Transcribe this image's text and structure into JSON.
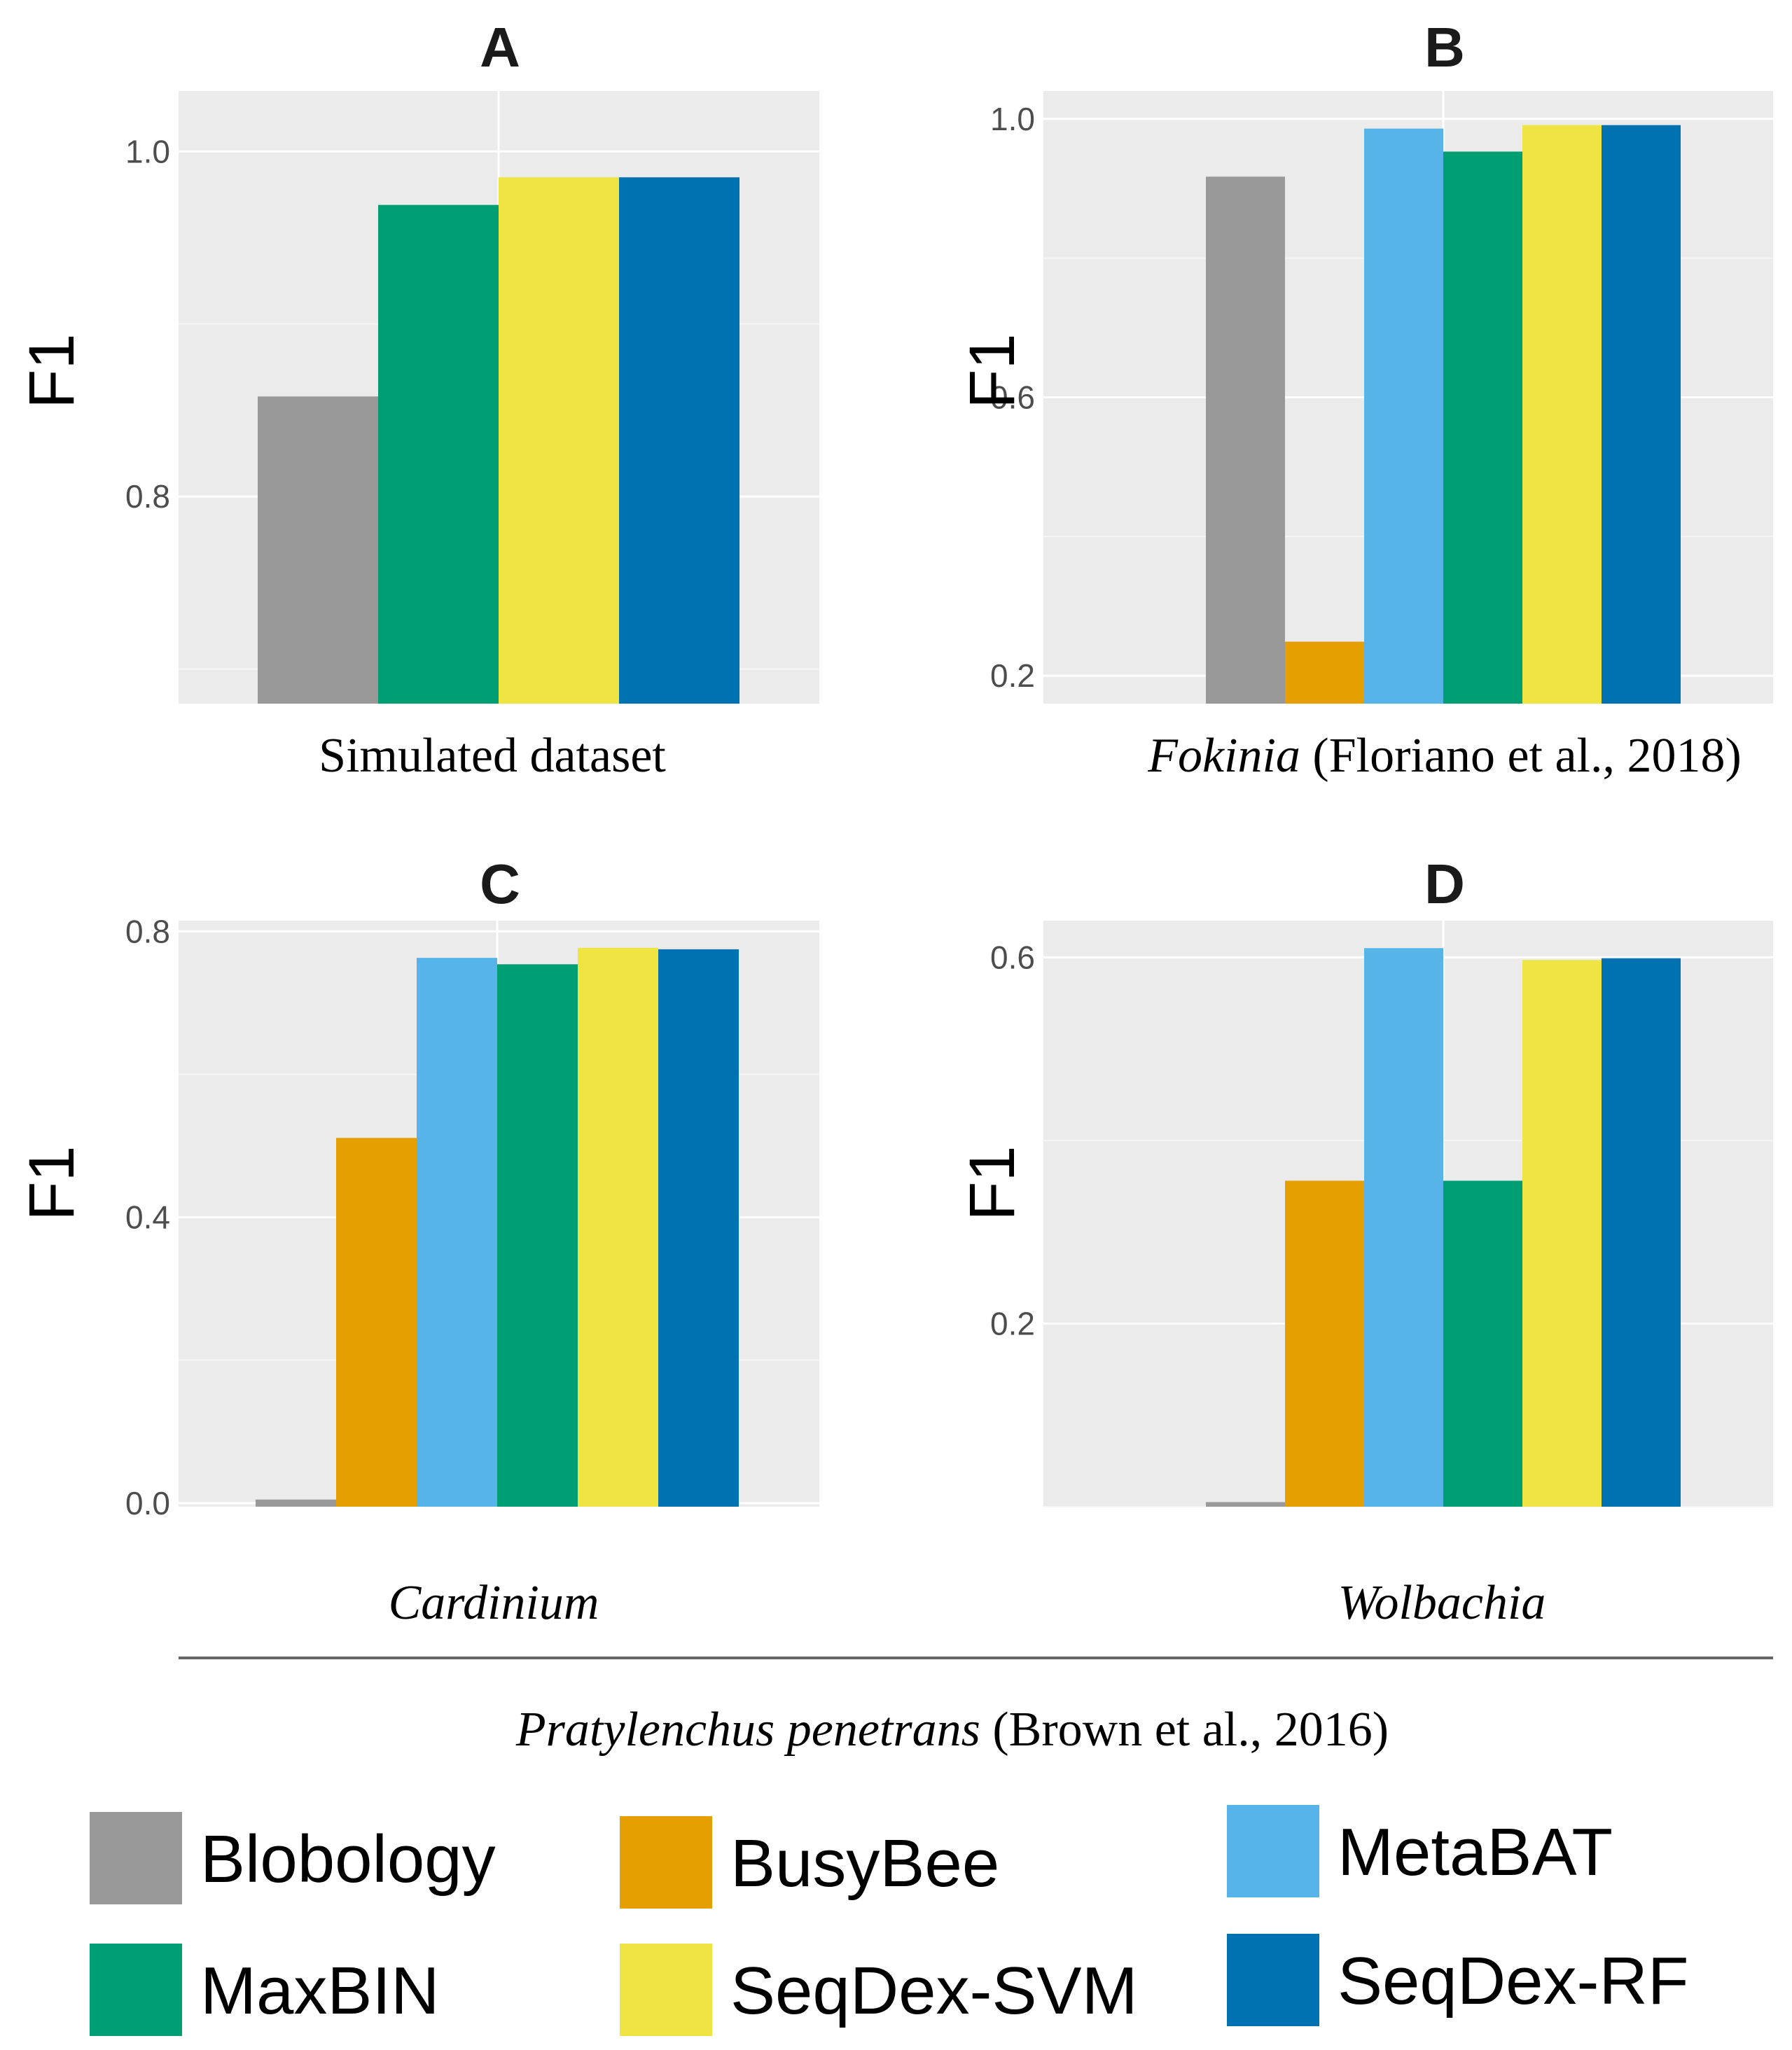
{
  "colors": {
    "panel_bg": "#ebebeb",
    "grid_major": "#ffffff",
    "grid_minor": "#f5f5f5",
    "divider": "#666666"
  },
  "methods": [
    {
      "name": "Blobology",
      "color": "#999999"
    },
    {
      "name": "BusyBee",
      "color": "#e69f00"
    },
    {
      "name": "MetaBAT",
      "color": "#56b4e9"
    },
    {
      "name": "MaxBIN",
      "color": "#009e73"
    },
    {
      "name": "SeqDex-SVM",
      "color": "#f0e442"
    },
    {
      "name": "SeqDex-RF",
      "color": "#0072b2"
    }
  ],
  "chart_data": [
    {
      "type": "bar",
      "panel": "A",
      "ylabel": "F1",
      "xlabel": "Simulated dataset",
      "ylim": [
        0.68,
        1.035
      ],
      "yticks": [
        0.8,
        1.0
      ],
      "categories": [
        "Blobology",
        "MaxBIN",
        "SeqDex-SVM",
        "SeqDex-RF"
      ],
      "values": [
        0.858,
        0.969,
        0.985,
        0.985
      ]
    },
    {
      "type": "bar",
      "panel": "B",
      "ylabel": "F1",
      "xlabel_italic": "Fokinia",
      "xlabel_rest": " (Floriano et al., 2018)",
      "ylim": [
        0.16,
        1.04
      ],
      "yticks": [
        0.2,
        0.6,
        1.0
      ],
      "categories": [
        "Blobology",
        "BusyBee",
        "MetaBAT",
        "MaxBIN",
        "SeqDex-SVM",
        "SeqDex-RF"
      ],
      "values": [
        0.917,
        0.249,
        0.986,
        0.953,
        0.991,
        0.991
      ]
    },
    {
      "type": "bar",
      "panel": "C",
      "ylabel": "F1",
      "xlabel_italic": "Cardinium",
      "ylim": [
        -0.005,
        0.815
      ],
      "yticks": [
        0.0,
        0.4,
        0.8
      ],
      "categories": [
        "Blobology",
        "BusyBee",
        "MetaBAT",
        "MaxBIN",
        "SeqDex-SVM",
        "SeqDex-RF"
      ],
      "values": [
        0.005,
        0.511,
        0.763,
        0.754,
        0.777,
        0.775
      ]
    },
    {
      "type": "bar",
      "panel": "D",
      "ylabel": "F1",
      "xlabel_italic": "Wolbachia",
      "ylim": [
        0.0,
        0.64
      ],
      "yticks": [
        0.2,
        0.6
      ],
      "categories": [
        "Blobology",
        "BusyBee",
        "MetaBAT",
        "MaxBIN",
        "SeqDex-SVM",
        "SeqDex-RF"
      ],
      "values": [
        0.005,
        0.356,
        0.61,
        0.356,
        0.597,
        0.599
      ]
    }
  ],
  "shared_caption": {
    "italic": "Pratylenchus penetrans",
    "rest": " (Brown et al., 2016)"
  }
}
